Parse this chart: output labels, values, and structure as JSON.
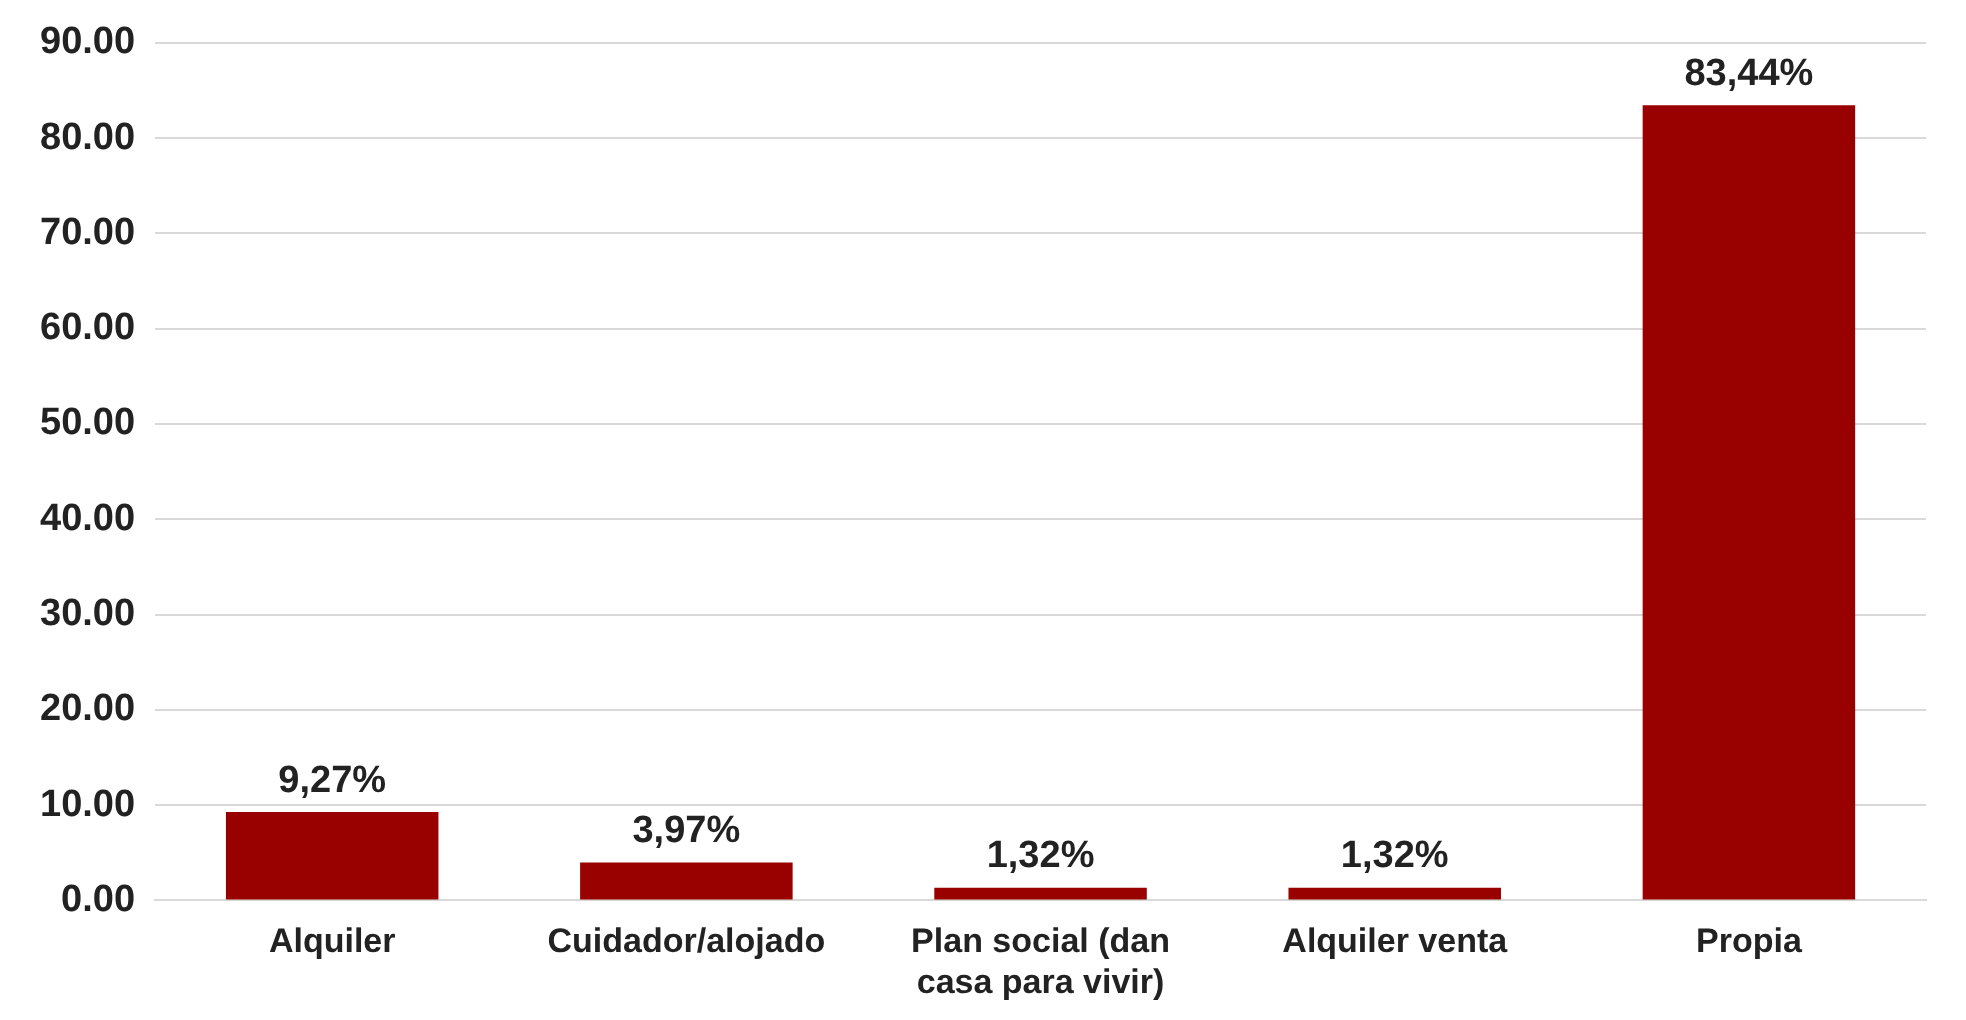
{
  "chart_data": {
    "type": "bar",
    "categories": [
      "Alquiler",
      "Cuidador/alojado",
      "Plan social (dan casa para vivir)",
      "Alquiler venta",
      "Propia"
    ],
    "values": [
      9.27,
      3.97,
      1.32,
      1.32,
      83.44
    ],
    "value_labels": [
      "9,27%",
      "3,97%",
      "1,32%",
      "1,32%",
      "83,44%"
    ],
    "color": "#990000",
    "ylim": [
      0,
      90
    ],
    "yticks": [
      {
        "value": 0,
        "label": "0.00"
      },
      {
        "value": 10,
        "label": "10.00"
      },
      {
        "value": 20,
        "label": "20.00"
      },
      {
        "value": 30,
        "label": "30.00"
      },
      {
        "value": 40,
        "label": "40.00"
      },
      {
        "value": 50,
        "label": "50.00"
      },
      {
        "value": 60,
        "label": "60.00"
      },
      {
        "value": 70,
        "label": "70.00"
      },
      {
        "value": 80,
        "label": "80.00"
      },
      {
        "value": 90,
        "label": "90.00"
      }
    ],
    "grid": "y"
  }
}
